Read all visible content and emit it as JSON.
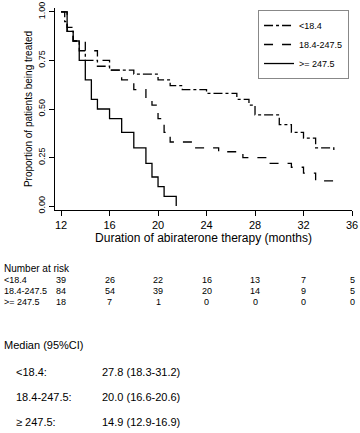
{
  "chart_data": {
    "type": "line",
    "x_label": "Duration of abiraterone therapy (months)",
    "y_label": "Proportion of patients being treated",
    "xlim": [
      11.5,
      36
    ],
    "xticks": [
      12,
      16,
      20,
      24,
      28,
      32,
      36
    ],
    "ylim": [
      -0.02,
      1.02
    ],
    "yticks": [
      {
        "value": 0,
        "label": "0.00"
      },
      {
        "value": 0.25,
        "label": "0.25"
      },
      {
        "value": 0.5,
        "label": "0.50"
      },
      {
        "value": 0.75,
        "label": "0.75"
      },
      {
        "value": 1,
        "label": "1.00"
      }
    ],
    "grid": false,
    "legend": "upper right",
    "series": [
      {
        "name": "<18.4",
        "color": "#000000",
        "line_style": "dashdot",
        "x": [
          12,
          12.3,
          12.5,
          13,
          13.5,
          14,
          15,
          16,
          18,
          20,
          21,
          22,
          24,
          26.5,
          27.5,
          28,
          30,
          31,
          32,
          33,
          34.5
        ],
        "values": [
          1.0,
          0.95,
          0.9,
          0.85,
          0.8,
          0.75,
          0.72,
          0.7,
          0.68,
          0.65,
          0.62,
          0.6,
          0.58,
          0.55,
          0.52,
          0.47,
          0.42,
          0.38,
          0.35,
          0.3,
          0.28
        ]
      },
      {
        "name": "18.4-247.5",
        "color": "#000000",
        "line_style": "dash",
        "x": [
          12,
          12.5,
          13,
          14,
          15,
          16,
          17,
          18,
          19,
          19.5,
          20,
          20.5,
          21,
          23,
          25,
          27,
          29,
          31,
          32,
          33,
          34.5
        ],
        "values": [
          1.0,
          0.92,
          0.85,
          0.8,
          0.75,
          0.7,
          0.65,
          0.6,
          0.55,
          0.52,
          0.45,
          0.38,
          0.33,
          0.3,
          0.28,
          0.25,
          0.22,
          0.2,
          0.17,
          0.13,
          0.13
        ]
      },
      {
        "name": ">= 247.5",
        "color": "#000000",
        "line_style": "solid",
        "x": [
          12,
          12.5,
          13,
          13.5,
          14,
          14.5,
          15,
          16,
          17,
          18,
          19,
          19.5,
          20,
          20.5,
          21.5
        ],
        "values": [
          1.0,
          0.9,
          0.85,
          0.75,
          0.65,
          0.55,
          0.5,
          0.45,
          0.38,
          0.3,
          0.22,
          0.15,
          0.1,
          0.05,
          0.0
        ]
      }
    ],
    "risk_table": {
      "title": "Number at risk",
      "times": [
        12,
        16,
        20,
        24,
        28,
        32,
        36
      ],
      "rows": [
        {
          "name": "<18.4",
          "counts": [
            39,
            26,
            22,
            16,
            13,
            7,
            5
          ]
        },
        {
          "name": "18.4-247.5",
          "counts": [
            84,
            54,
            39,
            20,
            14,
            9,
            5
          ]
        },
        {
          "name": ">= 247.5",
          "counts": [
            18,
            7,
            1,
            0,
            0,
            0,
            0
          ]
        }
      ]
    },
    "medians": {
      "title": "Median (95%CI)",
      "rows": [
        {
          "name": "<18.4:",
          "text": "27.8 (18.3-31.2)"
        },
        {
          "name": "18.4-247.5:",
          "text": "20.0 (16.6-20.6)"
        },
        {
          "name": "≥ 247.5:",
          "text": "14.9 (12.9-16.9)"
        }
      ]
    }
  }
}
